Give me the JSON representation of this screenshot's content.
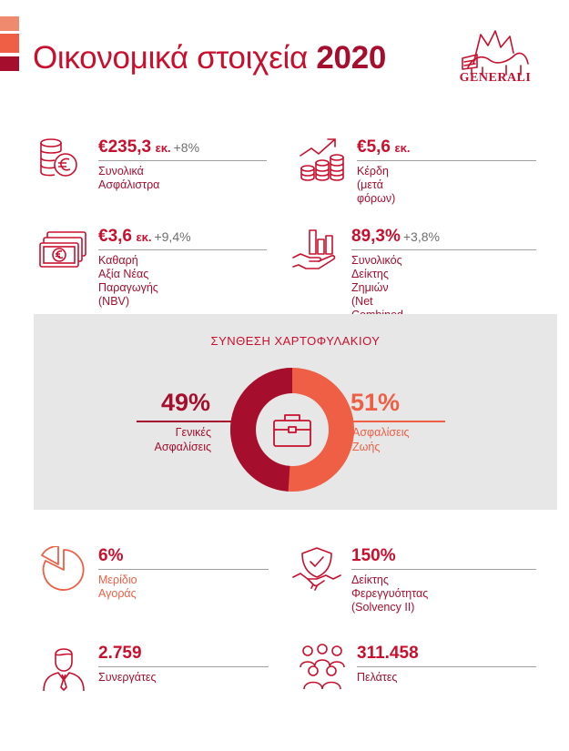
{
  "title": {
    "text": "Οικονομικά στοιχεία",
    "year": "2020"
  },
  "logo": {
    "text": "GENERALI"
  },
  "colors": {
    "primary": "#c8102e",
    "dark": "#a50f2d",
    "orange": "#ee5f45",
    "grey_bg": "#e7e7e7"
  },
  "kpis": {
    "premiums": {
      "icon": "coins-euro-icon",
      "value": "€235,3",
      "unit": "εκ.",
      "change": "+8%",
      "label": "Συνολικά Ασφάλιστρα"
    },
    "profit": {
      "icon": "growth-coins-icon",
      "value": "€5,6",
      "unit": "εκ.",
      "change": "",
      "label": "Κέρδη (μετά φόρων)"
    },
    "nbv": {
      "icon": "banknotes-icon",
      "value": "€3,6",
      "unit": "εκ.",
      "change": "+9,4%",
      "label_line1": "Καθαρή Αξία Νέας Παραγωγής",
      "label_line2": "(NBV)"
    },
    "combined_ratio": {
      "icon": "hand-bar-chart-icon",
      "value": "89,3%",
      "change": "+3,8%",
      "label_line1": "Συνολικός Δείκτης Ζημιών",
      "label_line2": "(Net Combined Ratio)"
    },
    "market_share": {
      "icon": "pie-chart-icon",
      "value": "6%",
      "label": "Μερίδιο Αγοράς"
    },
    "solvency": {
      "icon": "shield-handshake-icon",
      "value": "150%",
      "label_line1": "Δείκτης Φερεγγυότητας",
      "label_line2": "(Solvency II)"
    },
    "partners": {
      "icon": "person-tie-icon",
      "value": "2.759",
      "label": "Συνεργάτες"
    },
    "clients": {
      "icon": "people-group-icon",
      "value": "311.458",
      "label": "Πελάτες"
    }
  },
  "portfolio": {
    "title": "ΣΥΝΘΕΣΗ ΧΑΡΤΟΦΥΛΑΚΙΟΥ",
    "center_icon": "briefcase-icon",
    "general": {
      "percent": "49%",
      "share": 0.49,
      "label_line1": "Γενικές",
      "label_line2": "Ασφαλίσεις",
      "color": "#a50f2d"
    },
    "life": {
      "percent": "51%",
      "share": 0.51,
      "label_line1": "Ασφαλίσεις",
      "label_line2": "Ζωής",
      "color": "#ee5f45"
    }
  }
}
